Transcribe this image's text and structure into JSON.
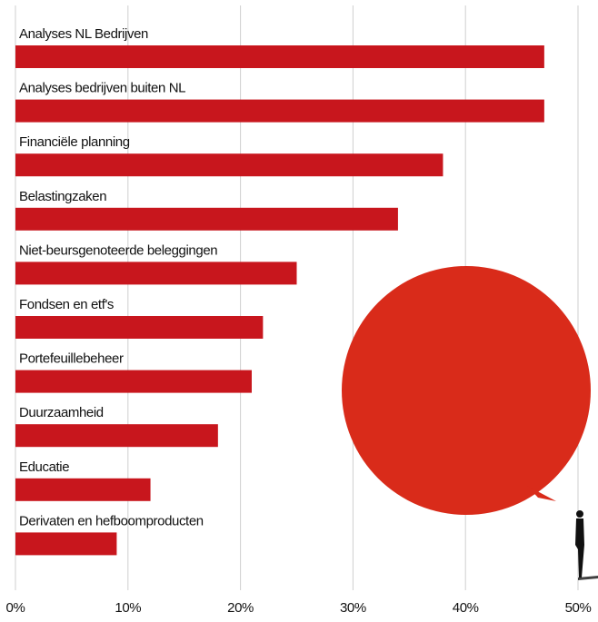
{
  "chart_data": {
    "type": "hbar",
    "categories": [
      "Analyses NL Bedrijven",
      "Analyses bedrijven buiten NL",
      "Financiële planning",
      "Belastingzaken",
      "Niet-beursgenoteerde beleggingen",
      "Fondsen en etf's",
      "Portefeuillebeheer",
      "Duurzaamheid",
      "Educatie",
      "Derivaten en hefboomproducten"
    ],
    "values": [
      47,
      47,
      38,
      34,
      25,
      22,
      21,
      18,
      12,
      9
    ],
    "color": "#c8161d",
    "xlim": [
      0,
      50
    ],
    "xticks": [
      {
        "value": 0,
        "label": "0%"
      },
      {
        "value": 10,
        "label": "10%"
      },
      {
        "value": 20,
        "label": "20%"
      },
      {
        "value": 30,
        "label": "30%"
      },
      {
        "value": 40,
        "label": "40%"
      },
      {
        "value": 50,
        "label": "50%"
      }
    ],
    "grid": true
  }
}
